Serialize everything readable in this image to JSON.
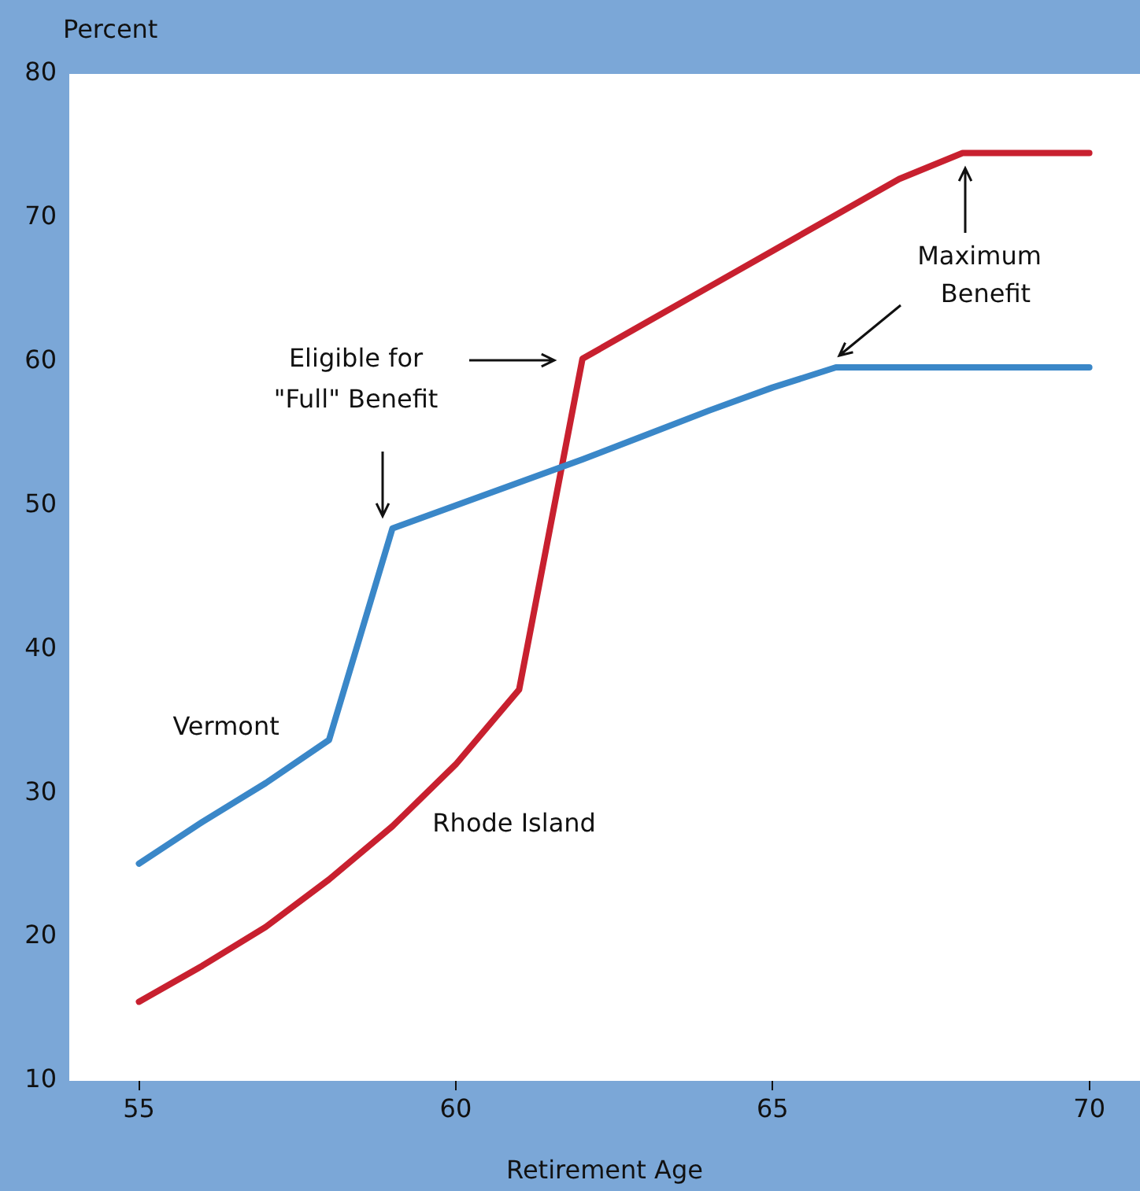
{
  "chart_data": {
    "type": "line",
    "ylabel": "Percent",
    "xlabel": "Retirement Age",
    "x": [
      55,
      56,
      57,
      58,
      59,
      60,
      61,
      62,
      63,
      64,
      65,
      66,
      67,
      68,
      69,
      70
    ],
    "xlim": [
      53.9,
      70.8
    ],
    "xticks": [
      55,
      60,
      65,
      70
    ],
    "ylim": [
      10,
      80
    ],
    "yticks": [
      10,
      20,
      30,
      40,
      50,
      60,
      70,
      80
    ],
    "grid": false,
    "legend": false,
    "marker": "none",
    "line_style": "solid",
    "series": [
      {
        "name": "Vermont",
        "color": "#3a87c8",
        "values": [
          25.1,
          28,
          30.7,
          33.7,
          48.4,
          50,
          51.6,
          53.2,
          54.9,
          56.6,
          58.2,
          59.6,
          59.6,
          59.6,
          59.6,
          59.6
        ]
      },
      {
        "name": "Rhode Island",
        "color": "#c8202f",
        "values": [
          15.5,
          18,
          20.7,
          24,
          27.7,
          32,
          37.2,
          60.2,
          62.7,
          65.2,
          67.7,
          70.2,
          72.7,
          74.5,
          74.5,
          74.5
        ]
      }
    ],
    "annotations": [
      "Eligible for\n\"Full\" Benefit",
      "Maximum\nBenefit"
    ]
  }
}
